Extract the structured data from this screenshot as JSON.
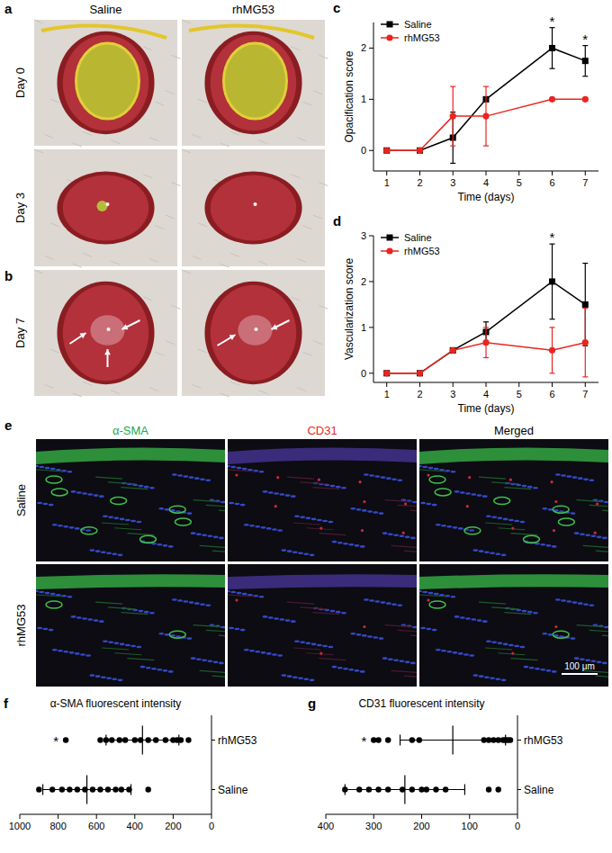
{
  "photos": {
    "panel_labels": [
      "a",
      "b"
    ],
    "columns": [
      "Saline",
      "rhMG53"
    ],
    "rows": [
      "Day 0",
      "Day 3",
      "Day 7"
    ]
  },
  "micrographs": {
    "panel_label": "e",
    "columns": [
      {
        "label": "α-SMA",
        "color": "#1aa84b"
      },
      {
        "label": "CD31",
        "color": "#e32b24"
      },
      {
        "label": "Merged",
        "color": "#000000"
      }
    ],
    "rows": [
      "Saline",
      "rhMG53"
    ],
    "scale_bar": "100 μm"
  },
  "chart_data": [
    {
      "type": "line",
      "panel_label": "c",
      "y_label": "Opacification score",
      "x_label": "Time (days)",
      "x": [
        1,
        2,
        3,
        4,
        6,
        7
      ],
      "xlim": [
        0.6,
        7.4
      ],
      "xticks": [
        1,
        2,
        3,
        4,
        5,
        6,
        7
      ],
      "ylim": [
        -0.4,
        2.5
      ],
      "yticks": [
        0,
        1,
        2
      ],
      "legend": "top-left",
      "series": [
        {
          "name": "Saline",
          "color": "#000000",
          "marker": "square",
          "values": [
            0,
            0,
            0.25,
            1,
            2,
            1.75
          ],
          "errors": [
            0,
            0,
            0.5,
            0,
            0.4,
            0.3
          ]
        },
        {
          "name": "rhMG53",
          "color": "#e8251f",
          "marker": "circle",
          "values": [
            0,
            0,
            0.67,
            0.67,
            1,
            1
          ],
          "errors": [
            0,
            0,
            0.58,
            0.58,
            0,
            0
          ]
        }
      ],
      "annotations": [
        {
          "text": "*",
          "x": 6
        },
        {
          "text": "*",
          "x": 7
        }
      ]
    },
    {
      "type": "line",
      "panel_label": "d",
      "y_label": "Vascularization score",
      "x_label": "Time (days)",
      "x": [
        1,
        2,
        3,
        4,
        6,
        7
      ],
      "xlim": [
        0.6,
        7.4
      ],
      "xticks": [
        1,
        2,
        3,
        4,
        5,
        6,
        7
      ],
      "ylim": [
        -0.2,
        3
      ],
      "yticks": [
        0,
        1,
        2,
        3
      ],
      "legend": "top-left",
      "series": [
        {
          "name": "Saline",
          "color": "#000000",
          "marker": "square",
          "values": [
            0,
            0,
            0.5,
            0.9,
            2,
            1.5
          ],
          "errors": [
            0,
            0,
            0,
            0.22,
            0.82,
            0.9
          ]
        },
        {
          "name": "rhMG53",
          "color": "#e8251f",
          "marker": "circle",
          "values": [
            0,
            0,
            0.5,
            0.67,
            0.5,
            0.67
          ],
          "errors": [
            0,
            0,
            0,
            0.33,
            0.5,
            0.75
          ]
        }
      ],
      "annotations": [
        {
          "text": "*",
          "x": 6
        }
      ]
    },
    {
      "type": "strip",
      "orientation": "horizontal",
      "panel_label": "f",
      "title": "α-SMA fluorescent intensity",
      "color": "#000000",
      "categories": [
        "rhMG53",
        "Saline"
      ],
      "values": [
        [
          760,
          580,
          550,
          520,
          480,
          450,
          400,
          370,
          330,
          290,
          240,
          200,
          180,
          160,
          120
        ],
        [
          900,
          830,
          780,
          740,
          700,
          660,
          620,
          580,
          540,
          500,
          470,
          430,
          330
        ]
      ],
      "means": [
        360,
        650
      ],
      "errors": [
        190,
        230
      ],
      "xlim": [
        1000,
        0
      ],
      "xticks": [
        1000,
        800,
        600,
        400,
        200,
        0
      ],
      "annotations": [
        {
          "text": "*",
          "category": "rhMG53"
        }
      ]
    },
    {
      "type": "strip",
      "orientation": "horizontal",
      "panel_label": "g",
      "title": "CD31 fluorescent intensity",
      "color": "#000000",
      "categories": [
        "rhMG53",
        "Saline"
      ],
      "values": [
        [
          300,
          290,
          270,
          220,
          205,
          70,
          60,
          50,
          40,
          30,
          25,
          20,
          15
        ],
        [
          360,
          330,
          310,
          290,
          270,
          240,
          220,
          200,
          190,
          170,
          150,
          60,
          40
        ]
      ],
      "means": [
        135,
        235
      ],
      "errors": [
        110,
        125
      ],
      "xlim": [
        400,
        0
      ],
      "xticks": [
        400,
        300,
        200,
        100,
        0
      ],
      "annotations": [
        {
          "text": "*",
          "category": "rhMG53"
        }
      ]
    }
  ]
}
